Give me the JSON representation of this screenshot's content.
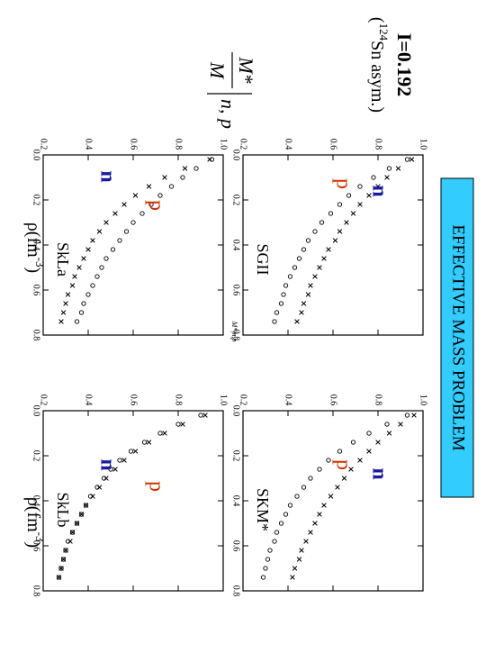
{
  "banner": {
    "text": "EFFECTIVE MASS PROBLEM",
    "bg_color": "#33ccff"
  },
  "title": {
    "asymmetry": "I=0.192",
    "nucleus": "(124Sn asym.)"
  },
  "ylabel_formula": {
    "num": "M*",
    "den": "M",
    "bar_sub": "n, p"
  },
  "small_overlap_label": "M*|n,p",
  "xlabel_text": "ρ(fm",
  "xlabel_exp": "-3",
  "xlabel_close": ")",
  "colors": {
    "n_label": "#1a1aa0",
    "p_label": "#cc3300",
    "marks": "#000000"
  },
  "chart_data": [
    {
      "type": "scatter",
      "panel": "SGII",
      "xlim": [
        0,
        0.8
      ],
      "ylim": [
        0.2,
        1.0
      ],
      "xticks": [
        "0.0",
        "0.2",
        "0.4",
        "0.6",
        "0.8"
      ],
      "yticks": [
        "0.2",
        "0.4",
        "0.6",
        "0.8",
        "1.0"
      ],
      "labels": {
        "n": "n",
        "p": "p"
      },
      "series": [
        {
          "name": "n",
          "marker": "cross",
          "x": [
            0.02,
            0.06,
            0.1,
            0.14,
            0.18,
            0.22,
            0.26,
            0.3,
            0.34,
            0.38,
            0.42,
            0.46,
            0.5,
            0.54,
            0.58,
            0.62,
            0.66,
            0.7,
            0.74
          ],
          "y": [
            0.95,
            0.89,
            0.84,
            0.8,
            0.76,
            0.72,
            0.69,
            0.66,
            0.63,
            0.61,
            0.58,
            0.56,
            0.54,
            0.52,
            0.5,
            0.49,
            0.47,
            0.46,
            0.44
          ]
        },
        {
          "name": "p",
          "marker": "circle",
          "x": [
            0.02,
            0.06,
            0.1,
            0.14,
            0.18,
            0.22,
            0.26,
            0.3,
            0.34,
            0.38,
            0.42,
            0.46,
            0.5,
            0.54,
            0.58,
            0.62,
            0.66,
            0.7,
            0.74
          ],
          "y": [
            0.93,
            0.85,
            0.78,
            0.72,
            0.67,
            0.63,
            0.59,
            0.55,
            0.52,
            0.49,
            0.47,
            0.45,
            0.43,
            0.41,
            0.39,
            0.38,
            0.37,
            0.35,
            0.34
          ]
        }
      ]
    },
    {
      "type": "scatter",
      "panel": "SKM*",
      "xlim": [
        0,
        0.8
      ],
      "ylim": [
        0.2,
        1.0
      ],
      "xticks": [
        "0.0",
        "0.2",
        "0.4",
        "0.6",
        "0.8"
      ],
      "yticks": [
        "0.2",
        "0.4",
        "0.6",
        "0.8",
        "1.0"
      ],
      "labels": {
        "n": "n",
        "p": "p"
      },
      "series": [
        {
          "name": "n",
          "marker": "cross",
          "x": [
            0.02,
            0.06,
            0.1,
            0.14,
            0.18,
            0.22,
            0.26,
            0.3,
            0.34,
            0.38,
            0.42,
            0.46,
            0.5,
            0.54,
            0.58,
            0.62,
            0.66,
            0.7,
            0.74
          ],
          "y": [
            0.96,
            0.9,
            0.85,
            0.8,
            0.76,
            0.72,
            0.68,
            0.65,
            0.62,
            0.59,
            0.56,
            0.54,
            0.52,
            0.5,
            0.48,
            0.46,
            0.45,
            0.43,
            0.42
          ]
        },
        {
          "name": "p",
          "marker": "circle",
          "x": [
            0.02,
            0.06,
            0.1,
            0.14,
            0.18,
            0.22,
            0.26,
            0.3,
            0.34,
            0.38,
            0.42,
            0.46,
            0.5,
            0.54,
            0.58,
            0.62,
            0.66,
            0.7,
            0.74
          ],
          "y": [
            0.93,
            0.84,
            0.76,
            0.69,
            0.63,
            0.58,
            0.54,
            0.5,
            0.47,
            0.44,
            0.41,
            0.39,
            0.37,
            0.35,
            0.34,
            0.32,
            0.31,
            0.3,
            0.29
          ]
        }
      ]
    },
    {
      "type": "scatter",
      "panel": "SkLa",
      "xlim": [
        0,
        0.8
      ],
      "ylim": [
        0.2,
        1.0
      ],
      "xticks": [
        "0.0",
        "0.2",
        "0.4",
        "0.6",
        "0.8"
      ],
      "yticks": [
        "0.2",
        "0.4",
        "0.6",
        "0.8",
        "1.0"
      ],
      "labels": {
        "n": "n",
        "p": "p"
      },
      "series": [
        {
          "name": "n",
          "marker": "cross",
          "x": [
            0.02,
            0.06,
            0.1,
            0.14,
            0.18,
            0.22,
            0.26,
            0.3,
            0.34,
            0.38,
            0.42,
            0.46,
            0.5,
            0.54,
            0.58,
            0.62,
            0.66,
            0.7,
            0.74
          ],
          "y": [
            0.94,
            0.83,
            0.74,
            0.67,
            0.61,
            0.56,
            0.52,
            0.48,
            0.45,
            0.42,
            0.4,
            0.38,
            0.36,
            0.34,
            0.33,
            0.31,
            0.3,
            0.29,
            0.28
          ]
        },
        {
          "name": "p",
          "marker": "circle",
          "x": [
            0.02,
            0.06,
            0.1,
            0.14,
            0.18,
            0.22,
            0.26,
            0.3,
            0.34,
            0.38,
            0.42,
            0.46,
            0.5,
            0.54,
            0.58,
            0.62,
            0.66,
            0.7,
            0.74
          ],
          "y": [
            0.95,
            0.88,
            0.82,
            0.77,
            0.72,
            0.68,
            0.64,
            0.6,
            0.57,
            0.54,
            0.51,
            0.48,
            0.46,
            0.44,
            0.42,
            0.4,
            0.38,
            0.37,
            0.35
          ]
        }
      ]
    },
    {
      "type": "scatter",
      "panel": "SkLb",
      "xlim": [
        0,
        0.8
      ],
      "ylim": [
        0.2,
        1.0
      ],
      "xticks": [
        "0.0",
        "0.2",
        "0.4",
        "0.6",
        "0.8"
      ],
      "yticks": [
        "0.2",
        "0.4",
        "0.6",
        "0.8",
        "1.0"
      ],
      "labels": {
        "n": "n",
        "p": "p"
      },
      "series": [
        {
          "name": "n",
          "marker": "cross",
          "x": [
            0.02,
            0.06,
            0.1,
            0.14,
            0.18,
            0.22,
            0.26,
            0.3,
            0.34,
            0.38,
            0.42,
            0.46,
            0.5,
            0.54,
            0.58,
            0.62,
            0.66,
            0.7,
            0.74
          ],
          "y": [
            0.92,
            0.82,
            0.74,
            0.67,
            0.61,
            0.56,
            0.52,
            0.48,
            0.45,
            0.42,
            0.39,
            0.37,
            0.35,
            0.33,
            0.32,
            0.3,
            0.29,
            0.28,
            0.27
          ]
        },
        {
          "name": "p",
          "marker": "circle",
          "x": [
            0.02,
            0.06,
            0.1,
            0.14,
            0.18,
            0.22,
            0.26,
            0.3,
            0.34,
            0.38,
            0.42,
            0.46,
            0.5,
            0.54,
            0.58,
            0.62,
            0.66,
            0.7,
            0.74
          ],
          "y": [
            0.9,
            0.8,
            0.72,
            0.65,
            0.59,
            0.54,
            0.5,
            0.47,
            0.44,
            0.41,
            0.39,
            0.37,
            0.35,
            0.33,
            0.31,
            0.3,
            0.29,
            0.28,
            0.27
          ]
        }
      ]
    }
  ]
}
